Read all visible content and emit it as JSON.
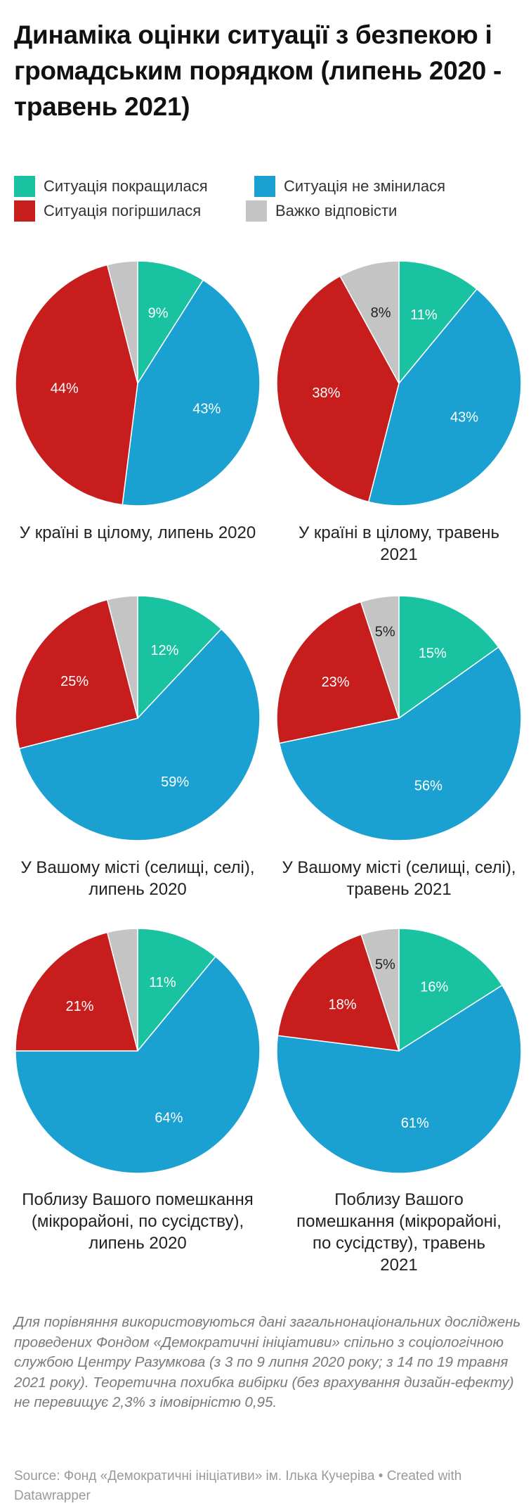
{
  "title": "Динаміка оцінки ситуації з безпекою і громадським порядком (липень 2020 - травень 2021)",
  "legend": [
    {
      "label": "Ситуація покращилася",
      "color": "#19c2a0"
    },
    {
      "label": "Ситуація не змінилася",
      "color": "#1ba1d1"
    },
    {
      "label": "Ситуація погіршилася",
      "color": "#c71e1d"
    },
    {
      "label": "Важко відповісти",
      "color": "#c4c4c4"
    }
  ],
  "chart_data": [
    {
      "type": "pie",
      "title": "У країні в цілому, липень 2020",
      "categories": [
        "Ситуація покращилася",
        "Ситуація не змінилася",
        "Ситуація погіршилася",
        "Важко відповісти"
      ],
      "values": [
        9,
        43,
        44,
        4
      ],
      "labels": [
        "9%",
        "43%",
        "44%",
        ""
      ]
    },
    {
      "type": "pie",
      "title": "У країні в цілому, травень 2021",
      "categories": [
        "Ситуація покращилася",
        "Ситуація не змінилася",
        "Ситуація погіршилася",
        "Важко відповісти"
      ],
      "values": [
        11,
        43,
        38,
        8
      ],
      "labels": [
        "11%",
        "43%",
        "38%",
        "8%"
      ]
    },
    {
      "type": "pie",
      "title": "У Вашому місті (селищі, селі), липень 2020",
      "categories": [
        "Ситуація покращилася",
        "Ситуація не змінилася",
        "Ситуація погіршилася",
        "Важко відповісти"
      ],
      "values": [
        12,
        59,
        25,
        4
      ],
      "labels": [
        "12%",
        "59%",
        "25%",
        ""
      ]
    },
    {
      "type": "pie",
      "title": "У Вашому місті (селищі, селі), травень 2021",
      "categories": [
        "Ситуація покращилася",
        "Ситуація не змінилася",
        "Ситуація погіршилася",
        "Важко відповісти"
      ],
      "values": [
        15,
        56,
        23,
        5
      ],
      "labels": [
        "15%",
        "56%",
        "23%",
        "5%"
      ]
    },
    {
      "type": "pie",
      "title": "Поблизу Вашого помешкання (мікрорайоні, по сусідству), липень 2020",
      "categories": [
        "Ситуація покращилася",
        "Ситуація не змінилася",
        "Ситуація погіршилася",
        "Важко відповісти"
      ],
      "values": [
        11,
        64,
        21,
        4
      ],
      "labels": [
        "11%",
        "64%",
        "21%",
        ""
      ]
    },
    {
      "type": "pie",
      "title": "Поблизу Вашого помешкання (мікрорайоні, по сусідству), травень 2021",
      "categories": [
        "Ситуація покращилася",
        "Ситуація не змінилася",
        "Ситуація погіршилася",
        "Важко відповісти"
      ],
      "values": [
        16,
        61,
        18,
        5
      ],
      "labels": [
        "16%",
        "61%",
        "18%",
        "5%"
      ]
    }
  ],
  "captions": [
    "У країні в цілому, липень 2020",
    "У країні в цілому, травень 2021",
    "У Вашому місті (селищі, селі), липень 2020",
    "У Вашому місті (селищі, селі), травень 2021",
    "Поблизу Вашого помешкання (мікрорайоні, по сусідству), липень 2020",
    "Поблизу Вашого помешкання (мікрорайоні, по сусідству), травень 2021"
  ],
  "note": "Для порівняння використовуються дані загальнонаціональних досліджень проведених Фондом «Демократичні ініціативи» спільно з соціологічною службою Центру Разумкова (з 3 по 9 липня 2020 року; з 14 по 19 травня 2021 року). Теоретична похибка вибірки (без врахування дизайн-ефекту) не перевищує 2,3% з імовірністю 0,95.",
  "source": "Source: Фонд «Демократичні ініціативи» ім. Ілька Кучеріва • Created with Datawrapper"
}
